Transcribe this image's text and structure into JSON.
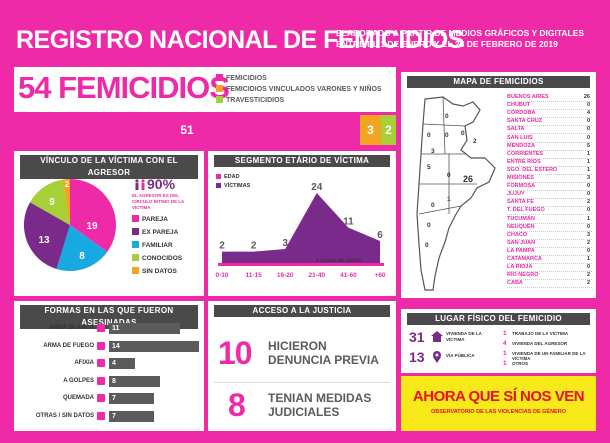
{
  "header": {
    "title": "REGISTRO NACIONAL DE FEMICIDIOS",
    "subtitle_line1": "ELABORADO A PARTIR DE MEDIOS GRÁFICOS Y DIGITALES",
    "subtitle_line2": "ENTRE EL 1 DE ENERO Y EL 28 DE FEBRERO DE 2019"
  },
  "summary": {
    "headline": "54 FEMICIDIOS",
    "legend": [
      "FEMICIDIOS",
      "FEMICIDIOS VINCULADOS VARONES Y NIÑOS",
      "TRAVESTICIDIOS"
    ],
    "values": [
      "51",
      "3",
      "2"
    ],
    "counts": [
      51,
      3,
      2
    ],
    "colors": [
      "#ef2aa8",
      "#f3a51f",
      "#a6cf38"
    ]
  },
  "vinculo": {
    "title": "VÍNCULO DE LA VÍCTIMA CON EL AGRESOR",
    "percent": "90%",
    "percent_note": "EL AGRESOR ES DEL CÍRCULO ÍNTIMO DE LA VÍCTIMA",
    "legend": [
      "PAREJA",
      "EX PAREJA",
      "FAMILIAR",
      "CONOCIDOS",
      "SIN DATOS"
    ],
    "values": [
      "19",
      "13",
      "8",
      "9",
      "2"
    ],
    "colors": [
      "#ef2aa8",
      "#7a2a8a",
      "#18a9e3",
      "#a6cf38",
      "#f3a51f"
    ]
  },
  "segmento": {
    "title": "SEGMENTO ETÁRIO DE VÍCTIMA",
    "legend": [
      "EDAD",
      "VÍCTIMAS"
    ],
    "categories": [
      "0-10",
      "11-15",
      "16-20",
      "21-40",
      "41-60",
      "+60"
    ],
    "value_labels": [
      "2",
      "2",
      "3",
      "24",
      "11",
      "6"
    ],
    "note": "3 CASOS SIN DATOS"
  },
  "chart_data": {
    "type": "area",
    "categories": [
      "0-10",
      "11-15",
      "16-20",
      "21-40",
      "41-60",
      "+60"
    ],
    "values": [
      2,
      2,
      3,
      24,
      11,
      6
    ],
    "legend": [
      "EDAD",
      "VÍCTIMAS"
    ]
  },
  "mapa": {
    "title": "MAPA DE FEMICIDIOS",
    "map_labels": [
      "0",
      "0",
      "0",
      "0",
      "2",
      "3",
      "5",
      "0",
      "26",
      "0",
      "0",
      "0",
      "1"
    ],
    "provinces": [
      [
        "BUENOS AIRES",
        "26"
      ],
      [
        "CHUBUT",
        "0"
      ],
      [
        "CÓRDOBA",
        "4"
      ],
      [
        "SANTA CRUZ",
        "0"
      ],
      [
        "SALTA",
        "0"
      ],
      [
        "SAN LUIS",
        "0"
      ],
      [
        "MENDOZA",
        "5"
      ],
      [
        "CORRIENTES",
        "1"
      ],
      [
        "ENTRE RÍOS",
        "1"
      ],
      [
        "SGO. DEL ESTERO",
        "1"
      ],
      [
        "MISIONES",
        "3"
      ],
      [
        "FORMOSA",
        "0"
      ],
      [
        "JUJUY",
        "0"
      ],
      [
        "SANTA FE",
        "2"
      ],
      [
        "T. DEL FUEGO",
        "0"
      ],
      [
        "TUCUMÁN",
        "1"
      ],
      [
        "NEUQUÉN",
        "0"
      ],
      [
        "CHACO",
        "3"
      ],
      [
        "SAN JUAN",
        "2"
      ],
      [
        "LA PAMPA",
        "0"
      ],
      [
        "CATAMARCA",
        "1"
      ],
      [
        "LA RIOJA",
        "0"
      ],
      [
        "RÍO NEGRO",
        "2"
      ],
      [
        "CABA",
        "2"
      ]
    ]
  },
  "formas": {
    "title": "FORMAS EN LAS QUE FUERON ASESINADAS",
    "items": [
      [
        "ARMA BLANCA",
        "11"
      ],
      [
        "ARMA DE FUEGO",
        "14"
      ],
      [
        "AFIXIA",
        "4"
      ],
      [
        "A GOLPES",
        "8"
      ],
      [
        "QUEMADA",
        "7"
      ],
      [
        "OTRAS / SIN DATOS",
        "7"
      ]
    ],
    "counts": [
      11,
      14,
      4,
      8,
      7,
      7
    ]
  },
  "justicia": {
    "title": "ACCESO A LA JUSTICIA",
    "item1_value": "10",
    "item1_line1": "HICIERON",
    "item1_line2": "DENUNCIA PREVIA",
    "item2_value": "8",
    "item2_line1": "TENIAN MEDIDAS",
    "item2_line2": "JUDICIALES"
  },
  "lugar": {
    "title": "LUGAR FÍSICO DEL FEMICIDIO",
    "vivienda_value": "31",
    "vivienda_label": "VIVIENDA DE LA VÍCTIMA",
    "via_value": "13",
    "via_label": "VÍA PÚBLICA",
    "details": [
      [
        "1",
        "TRABAJO DE LA VÍCTIMA"
      ],
      [
        "4",
        "VIVIENDA DEL AGRESOR"
      ],
      [
        "1",
        "VIVIENDA DE UN FAMILIAR DE LA VÍCTIMA"
      ],
      [
        "1",
        "OTROS"
      ]
    ]
  },
  "footer": {
    "logo_text": "AHORA QUE SÍ NOS VEN",
    "tagline": "OBSERVATORIO DE LAS VIOLENCIAS DE GÉNERO"
  }
}
